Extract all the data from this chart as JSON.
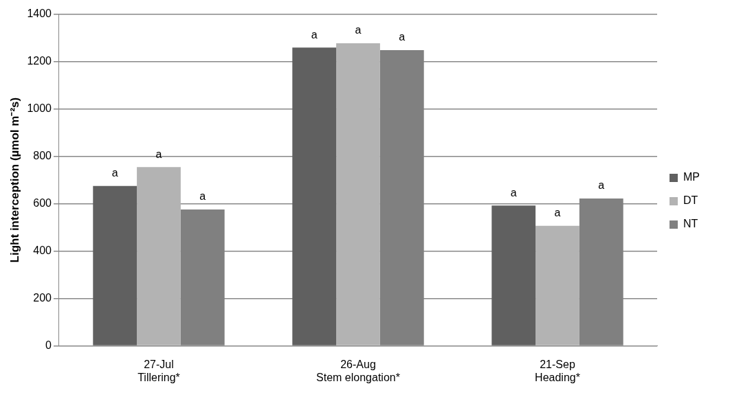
{
  "chart_data": {
    "type": "bar",
    "ylabel": "Light interception (µmol m⁻²s)",
    "categories": [
      "27-Jul\nTillering*",
      "26-Aug\nStem elongation*",
      "21-Sep\nHeading*"
    ],
    "series": [
      {
        "name": "MP",
        "color": "#606060",
        "values": [
          675,
          1259,
          592
        ],
        "value_labels": [
          "a",
          "a",
          "a"
        ]
      },
      {
        "name": "DT",
        "color": "#b3b3b3",
        "values": [
          755,
          1277,
          507
        ],
        "value_labels": [
          "a",
          "a",
          "a"
        ]
      },
      {
        "name": "NT",
        "color": "#808080",
        "values": [
          576,
          1248,
          622
        ],
        "value_labels": [
          "a",
          "a",
          "a"
        ]
      }
    ],
    "ylim": [
      0,
      1400
    ],
    "yticks": [
      0,
      200,
      400,
      600,
      800,
      1000,
      1200,
      1400
    ],
    "grid": "y",
    "legend": "right"
  }
}
